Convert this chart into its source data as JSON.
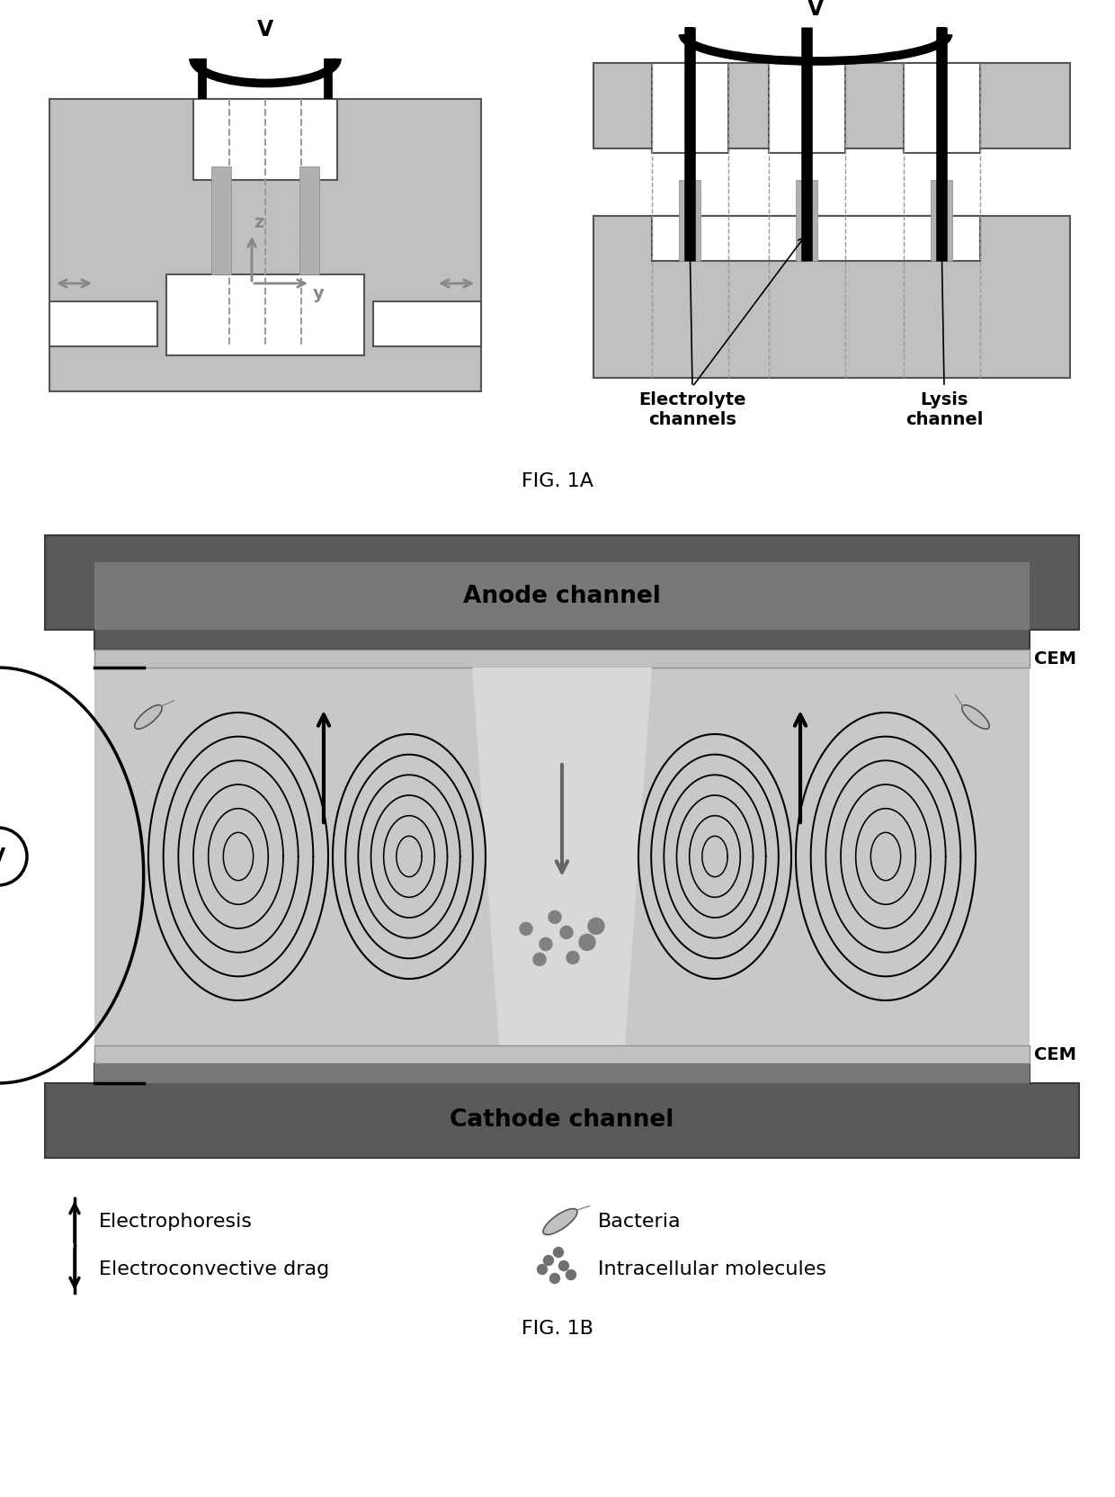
{
  "fig_width": 12.4,
  "fig_height": 16.64,
  "dpi": 100,
  "bg_color": "#ffffff",
  "gray_body": "#c0c0c0",
  "gray_dark": "#707070",
  "gray_medium": "#aaaaaa",
  "white": "#ffffff",
  "black": "#000000",
  "channel_dark": "#585858",
  "cem_color": "#b8b8b8",
  "lysis_bg": "#c8c8c8",
  "fig1a_label": "FIG. 1A",
  "fig1b_label": "FIG. 1B",
  "anode_label": "Anode channel",
  "cathode_label": "Cathode channel",
  "cem_label": "CEM",
  "electrolyte_label": "Electrolyte\nchannels",
  "lysis_label": "Lysis\nchannel",
  "v_label": "V"
}
